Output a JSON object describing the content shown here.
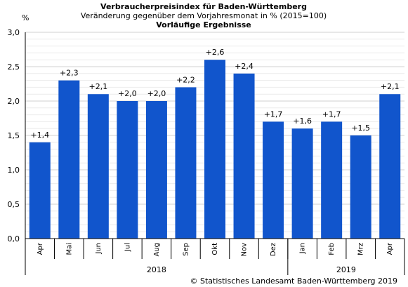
{
  "chart_data": {
    "type": "bar",
    "title": "Verbraucherpreisindex für Baden-Württemberg",
    "subtitle": "Veränderung gegenüber dem Vorjahresmonat in % (2015=100)",
    "subtitle2": "Vorläufige Ergebnisse",
    "ylabel": "%",
    "ylim": [
      0,
      3.0
    ],
    "yticks": [
      "0,0",
      "0,5",
      "1,0",
      "1,5",
      "2,0",
      "2,5",
      "3,0"
    ],
    "grid": true,
    "bar_color": "#1155cc",
    "categories": [
      "Apr",
      "Mai",
      "Jun",
      "Jul",
      "Aug",
      "Sep",
      "Okt",
      "Nov",
      "Dez",
      "Jan",
      "Feb",
      "Mrz",
      "Apr"
    ],
    "values": [
      1.4,
      2.3,
      2.1,
      2.0,
      2.0,
      2.2,
      2.6,
      2.4,
      1.7,
      1.6,
      1.7,
      1.5,
      2.1
    ],
    "data_labels": [
      "+1,4",
      "+2,3",
      "+2,1",
      "+2,0",
      "+2,0",
      "+2,2",
      "+2,6",
      "+2,4",
      "+1,7",
      "+1,6",
      "+1,7",
      "+1,5",
      "+2,1"
    ],
    "year_groups": [
      {
        "label": "2018",
        "count": 9
      },
      {
        "label": "2019",
        "count": 4
      }
    ]
  },
  "source": "© Statistisches Landesamt Baden-Württemberg 2019"
}
